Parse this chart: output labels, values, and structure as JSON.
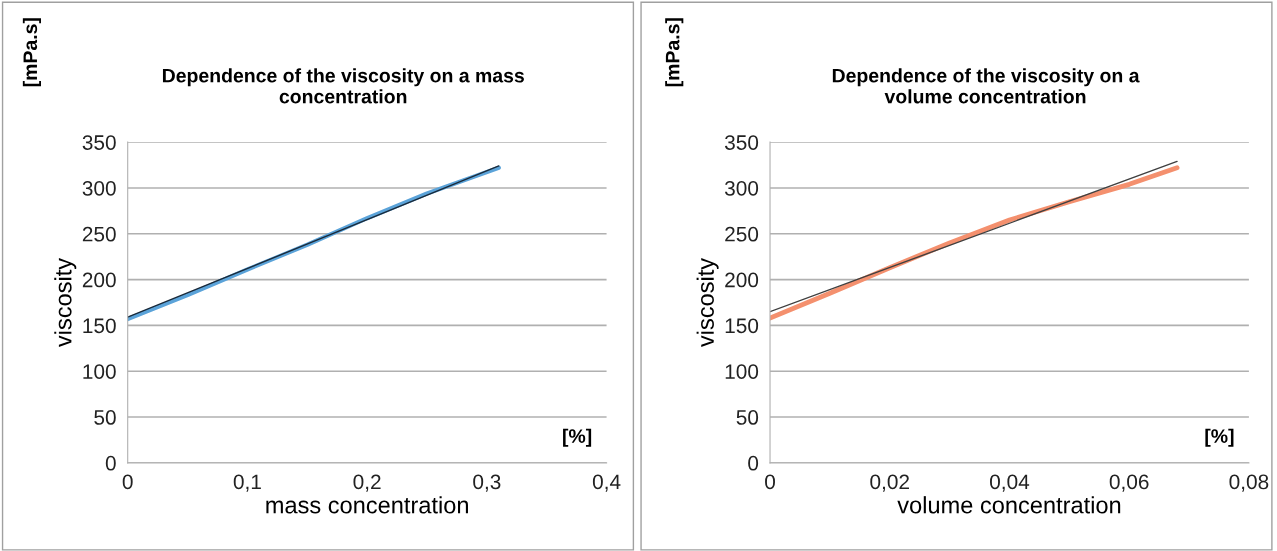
{
  "chart_data": [
    {
      "type": "line",
      "title": "Dependence of the viscosity on a mass\nconcentration",
      "xlabel": "mass concentration",
      "ylabel": "viscosity",
      "annotations": [
        "[mPa.s]",
        "[%]"
      ],
      "xlim": [
        0,
        0.4
      ],
      "xticks": [
        {
          "value": 0,
          "label": "0"
        },
        {
          "value": 0.1,
          "label": "0,1"
        },
        {
          "value": 0.2,
          "label": "0,2"
        },
        {
          "value": 0.3,
          "label": "0,3"
        },
        {
          "value": 0.4,
          "label": "0,4"
        }
      ],
      "ylim": [
        0,
        350
      ],
      "yticks": [
        0,
        50,
        100,
        150,
        200,
        250,
        300,
        350
      ],
      "grid": "y",
      "legend": false,
      "series": [
        {
          "color": "#5ba3d9",
          "x": [
            0,
            0.05,
            0.1,
            0.15,
            0.2,
            0.25,
            0.31
          ],
          "values": [
            157,
            183,
            211,
            238,
            267,
            294,
            322
          ]
        },
        {
          "color": "#1a2a3a",
          "x": [
            0,
            0.31
          ],
          "values": [
            159,
            324
          ]
        }
      ]
    },
    {
      "type": "line",
      "title": "Dependence of the viscosity on a\nvolume concentration",
      "xlabel": "volume concentration",
      "ylabel": "viscosity",
      "annotations": [
        "[mPa.s]",
        "[%]"
      ],
      "xlim": [
        0,
        0.08
      ],
      "xticks": [
        {
          "value": 0,
          "label": "0"
        },
        {
          "value": 0.02,
          "label": "0,02"
        },
        {
          "value": 0.04,
          "label": "0,04"
        },
        {
          "value": 0.06,
          "label": "0,06"
        },
        {
          "value": 0.08,
          "label": "0,08"
        }
      ],
      "ylim": [
        0,
        350
      ],
      "yticks": [
        0,
        50,
        100,
        150,
        200,
        250,
        300,
        350
      ],
      "grid": "y",
      "legend": false,
      "series": [
        {
          "color": "#f4906e",
          "x": [
            0,
            0.01,
            0.02,
            0.03,
            0.04,
            0.05,
            0.06,
            0.068
          ],
          "values": [
            158,
            185,
            213,
            240,
            265,
            285,
            304,
            322
          ]
        },
        {
          "color": "#404040",
          "x": [
            0,
            0.068
          ],
          "values": [
            165,
            329
          ]
        }
      ]
    }
  ]
}
